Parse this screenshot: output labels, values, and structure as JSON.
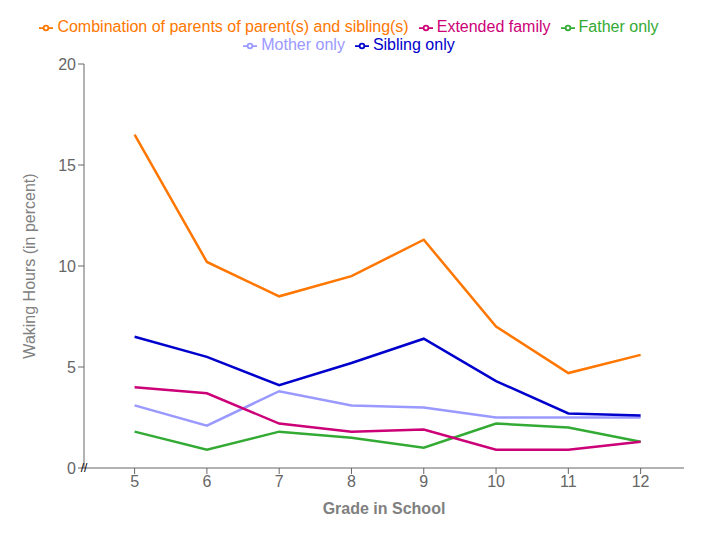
{
  "chart_data": {
    "type": "line",
    "x": [
      5,
      6,
      7,
      8,
      9,
      10,
      11,
      12
    ],
    "series": [
      {
        "name": "Mother only",
        "color": "#9999FF",
        "values": [
          3.1,
          2.1,
          3.8,
          3.1,
          3.0,
          2.5,
          2.5,
          2.5
        ]
      },
      {
        "name": "Father only",
        "color": "#33AA33",
        "values": [
          1.8,
          0.9,
          1.8,
          1.5,
          1.0,
          2.2,
          2.0,
          1.3
        ]
      },
      {
        "name": "Sibling only",
        "color": "#0000CC",
        "values": [
          6.5,
          5.5,
          4.1,
          5.2,
          6.4,
          4.3,
          2.7,
          2.6
        ]
      },
      {
        "name": "Combination of parents of parent(s) and sibling(s)",
        "color": "#FF7700",
        "values": [
          16.5,
          10.2,
          8.5,
          9.5,
          11.3,
          7.0,
          4.7,
          5.6
        ]
      },
      {
        "name": "Extended family",
        "color": "#CC0077",
        "values": [
          4.0,
          3.7,
          2.2,
          1.8,
          1.9,
          0.9,
          0.9,
          1.3
        ]
      }
    ],
    "xlabel": "Grade in School",
    "ylabel": "Waking Hours (in percent)",
    "xlim": [
      4.3,
      12.6
    ],
    "xticks": [
      5,
      6,
      7,
      8,
      9,
      10,
      11,
      12
    ],
    "ylim": [
      0,
      20
    ],
    "yticks": [
      0,
      5,
      10,
      15,
      20
    ],
    "grid": false,
    "legend": "top",
    "annotations": [
      "//"
    ]
  }
}
